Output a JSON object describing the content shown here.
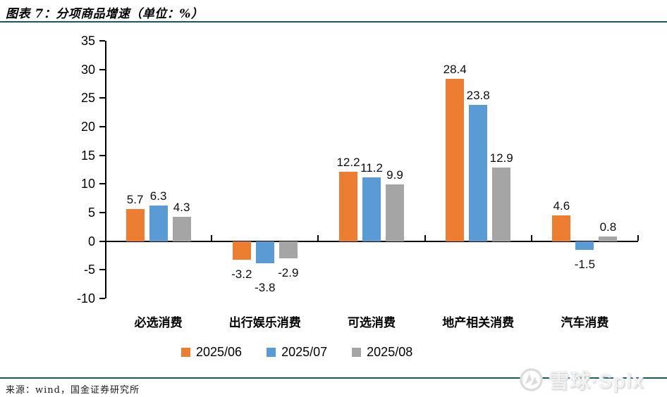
{
  "header": {
    "title": "图表 7：分项商品增速（单位：%）"
  },
  "footer": {
    "source": "来源：wind，国金证券研究所"
  },
  "watermark": {
    "text": "雪球·Splx"
  },
  "divider_color": "#175663",
  "chart_data": {
    "type": "bar",
    "title": "分项商品增速（单位：%）",
    "categories": [
      "必选消费",
      "出行娱乐消费",
      "可选消费",
      "地产相关消费",
      "汽车消费"
    ],
    "series": [
      {
        "name": "2025/06",
        "color": "#ED7D31",
        "values": [
          5.7,
          -3.2,
          12.2,
          28.4,
          4.6
        ]
      },
      {
        "name": "2025/07",
        "color": "#5B9BD5",
        "values": [
          6.3,
          -3.8,
          11.2,
          23.8,
          -1.5
        ]
      },
      {
        "name": "2025/08",
        "color": "#A5A5A5",
        "values": [
          4.3,
          -2.9,
          9.9,
          12.9,
          0.8
        ]
      }
    ],
    "ylim": [
      -10,
      35
    ],
    "ytick_step": 5,
    "yticks": [
      35,
      30,
      25,
      20,
      15,
      10,
      5,
      0,
      -5,
      -10
    ],
    "grid": false,
    "value_labels": true,
    "legend_position": "bottom",
    "axis_color": "#000000"
  }
}
